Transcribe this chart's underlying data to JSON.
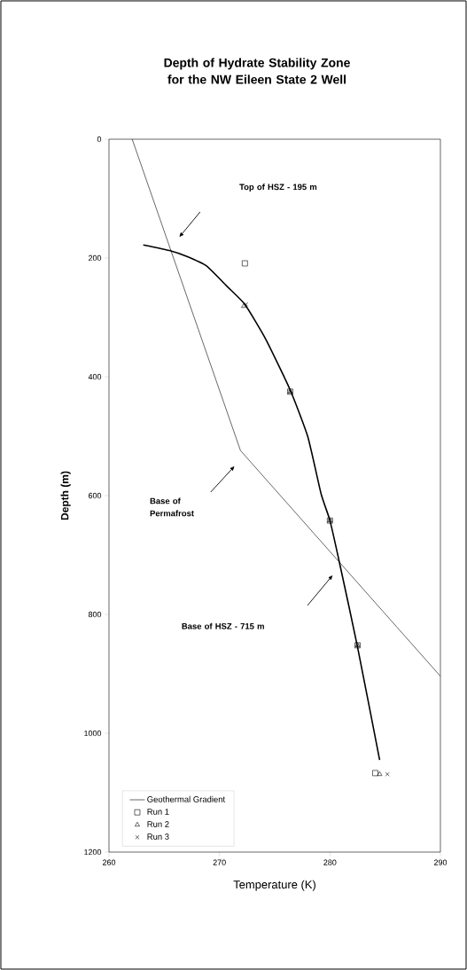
{
  "chart_data": {
    "type": "scatter",
    "title": "Depth of Hydrate Stability Zone for the NW Eileen State 2 Well",
    "xlabel": "Temperature (K)",
    "ylabel": "Depth (m)",
    "xlim": [
      260,
      290
    ],
    "xticks": [
      260,
      270,
      280,
      290
    ],
    "ylim": [
      1200,
      0
    ],
    "yticks": [
      0,
      200,
      400,
      600,
      800,
      1000,
      1200
    ],
    "grid": false,
    "legend": "bottom left",
    "annotations": [
      "Top of HSZ - 195 m",
      "Base of Permafrost",
      "Base of HSZ - 715 m"
    ],
    "series": [
      {
        "name": "Geothermal Gradient",
        "type": "line",
        "color": "#000000",
        "x": [
          262.1,
          271.9,
          290
        ],
        "values": [
          0,
          524,
          904
        ]
      },
      {
        "type": "line",
        "color": "#000000",
        "x": [
          263.1,
          265.6,
          267.0,
          268.8,
          270.7,
          272.3,
          274.2,
          276.4,
          278.0,
          279.2,
          280.0,
          280.9,
          282.5,
          284.5
        ],
        "values": [
          178,
          188,
          197,
          213,
          248,
          278,
          337,
          422,
          501,
          597,
          642,
          716,
          855,
          1045
        ]
      },
      {
        "name": "Run 1",
        "marker": "square",
        "color": "#000000",
        "x": [
          272.3,
          276.4,
          280.0,
          282.5,
          284.1
        ],
        "values": [
          209,
          425,
          642,
          852,
          1067
        ]
      },
      {
        "name": "Run 2",
        "marker": "triangle",
        "color": "#000000",
        "x": [
          272.2,
          276.4,
          280.0,
          282.5,
          284.5
        ],
        "values": [
          281,
          425,
          642,
          852,
          1069
        ]
      },
      {
        "name": "Run 3",
        "marker": "cross",
        "color": "#000000",
        "x": [
          272.4,
          276.4,
          280.0,
          282.5,
          285.2
        ],
        "values": [
          278,
          425,
          642,
          852,
          1069
        ]
      }
    ]
  }
}
